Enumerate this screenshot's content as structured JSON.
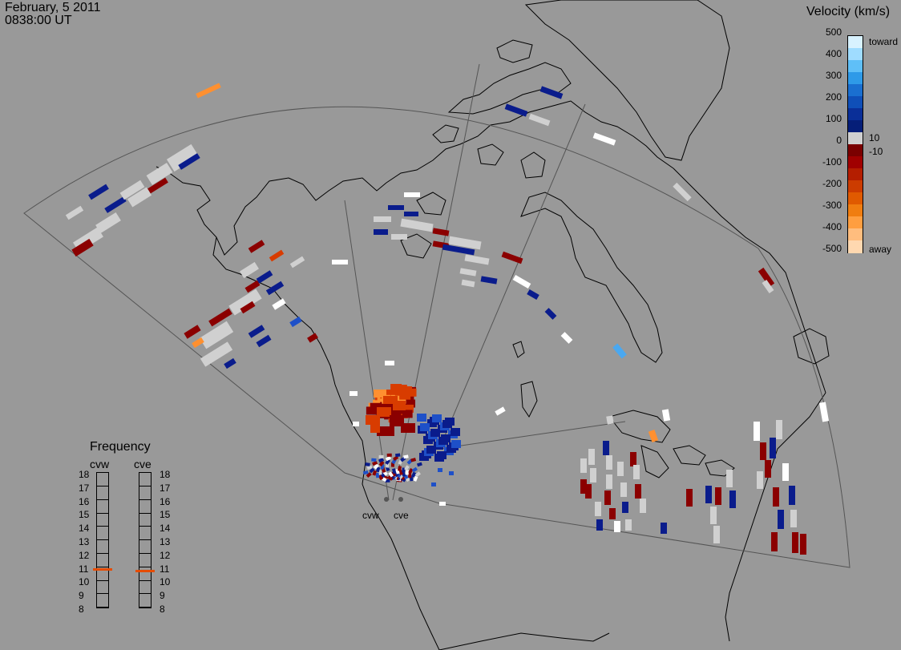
{
  "header": {
    "date": "February, 5 2011",
    "time": "0838:00 UT"
  },
  "colorbar": {
    "title": "Velocity (km/s)",
    "ticks": [
      "500",
      "400",
      "300",
      "200",
      "100",
      "10",
      "0",
      "-10",
      "-100",
      "-200",
      "-300",
      "-400",
      "-500"
    ],
    "toward_label": "toward",
    "away_label": "away",
    "colors": {
      "toward_light": "#cfeeff",
      "toward_mid": "#1e88e5",
      "toward_dark": "#0a1c8c",
      "gray_zone": "#d0d0d0",
      "away_dark": "#8b0000",
      "away_mid": "#d83c00",
      "away_light": "#ffd2a6"
    }
  },
  "frequency": {
    "title": "Frequency",
    "radars": [
      "cvw",
      "cve"
    ],
    "scale": [
      "18",
      "17",
      "16",
      "15",
      "14",
      "13",
      "12",
      "11",
      "10",
      "9",
      "8"
    ],
    "selected_mhz": {
      "cvw": 10.8,
      "cve": 10.7
    }
  },
  "sites": {
    "west_label": "cvw",
    "east_label": "cve"
  },
  "colors": {
    "background": "#999999",
    "coastline": "#000000",
    "fov_outline": "#555555"
  }
}
